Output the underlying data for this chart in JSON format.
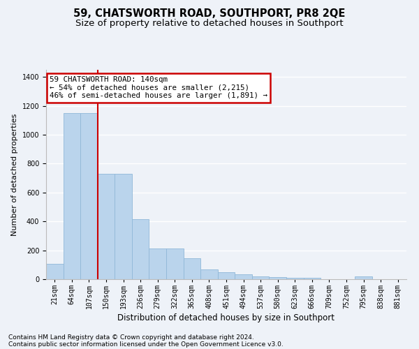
{
  "title1": "59, CHATSWORTH ROAD, SOUTHPORT, PR8 2QE",
  "title2": "Size of property relative to detached houses in Southport",
  "xlabel": "Distribution of detached houses by size in Southport",
  "ylabel": "Number of detached properties",
  "footer1": "Contains HM Land Registry data © Crown copyright and database right 2024.",
  "footer2": "Contains public sector information licensed under the Open Government Licence v3.0.",
  "categories": [
    "21sqm",
    "64sqm",
    "107sqm",
    "150sqm",
    "193sqm",
    "236sqm",
    "279sqm",
    "322sqm",
    "365sqm",
    "408sqm",
    "451sqm",
    "494sqm",
    "537sqm",
    "580sqm",
    "623sqm",
    "666sqm",
    "709sqm",
    "752sqm",
    "795sqm",
    "838sqm",
    "881sqm"
  ],
  "values": [
    107,
    1150,
    1150,
    730,
    730,
    415,
    215,
    215,
    147,
    70,
    48,
    32,
    20,
    16,
    12,
    12,
    0,
    0,
    18,
    0,
    0
  ],
  "bar_color": "#bad4ec",
  "bar_edge_color": "#90b8d8",
  "vline_x": 2.5,
  "annotation_text": "59 CHATSWORTH ROAD: 140sqm\n← 54% of detached houses are smaller (2,215)\n46% of semi-detached houses are larger (1,891) →",
  "annotation_box_color": "#ffffff",
  "annotation_box_edge_color": "#cc0000",
  "vline_color": "#cc0000",
  "ylim": [
    0,
    1450
  ],
  "yticks": [
    0,
    200,
    400,
    600,
    800,
    1000,
    1200,
    1400
  ],
  "background_color": "#eef2f8",
  "grid_color": "#ffffff",
  "title1_fontsize": 10.5,
  "title2_fontsize": 9.5,
  "xlabel_fontsize": 8.5,
  "ylabel_fontsize": 8,
  "tick_fontsize": 7,
  "annotation_fontsize": 7.8,
  "footer_fontsize": 6.5
}
